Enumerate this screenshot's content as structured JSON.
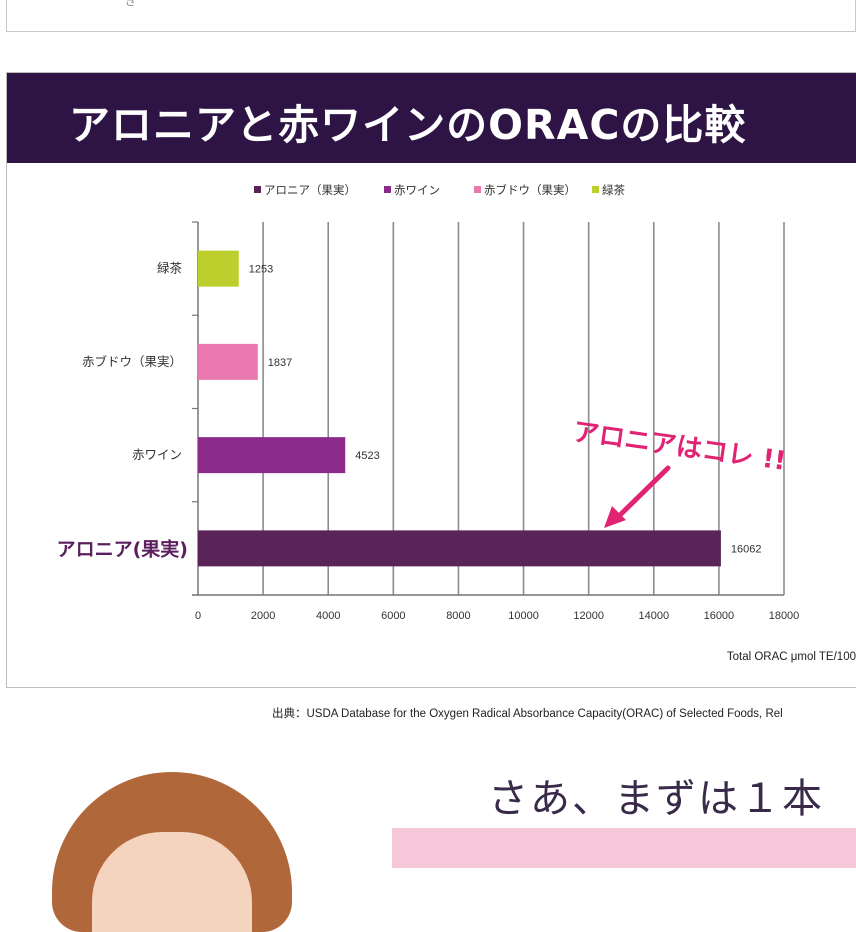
{
  "top_strip": {
    "glyph": "ぎ"
  },
  "header": {
    "title": "アロニアと赤ワインのORACの比較"
  },
  "chart_data": {
    "type": "bar",
    "orientation": "horizontal",
    "categories": [
      "緑茶",
      "赤ブドウ（果実）",
      "赤ワイン",
      "アロニア(果実)"
    ],
    "values": [
      1253,
      1837,
      4523,
      16062
    ],
    "colors": [
      "#bccf2c",
      "#e878ad",
      "#8c2a8c",
      "#5a2458"
    ],
    "legend": [
      "アロニア（果実）",
      "赤ワイン",
      "赤ブドウ（果実）",
      "緑茶"
    ],
    "legend_colors": [
      "#5a2458",
      "#8c2a8c",
      "#e878ad",
      "#bccf2c"
    ],
    "legend_position": "top",
    "x_ticks": [
      0,
      2000,
      4000,
      6000,
      8000,
      10000,
      12000,
      14000,
      16000,
      18000
    ],
    "xlim": [
      0,
      18000
    ],
    "xlabel": "Total ORAC μmol TE/100",
    "grid": true,
    "highlight_category": "アロニア(果実)",
    "annotation": "アロニアはコレ !!"
  },
  "source": {
    "text": "出典：USDA Database for the Oxygen Radical Absorbance Capacity(ORAC) of Selected Foods, Rel"
  },
  "bottom": {
    "slogan": "さあ、まずは１本"
  }
}
